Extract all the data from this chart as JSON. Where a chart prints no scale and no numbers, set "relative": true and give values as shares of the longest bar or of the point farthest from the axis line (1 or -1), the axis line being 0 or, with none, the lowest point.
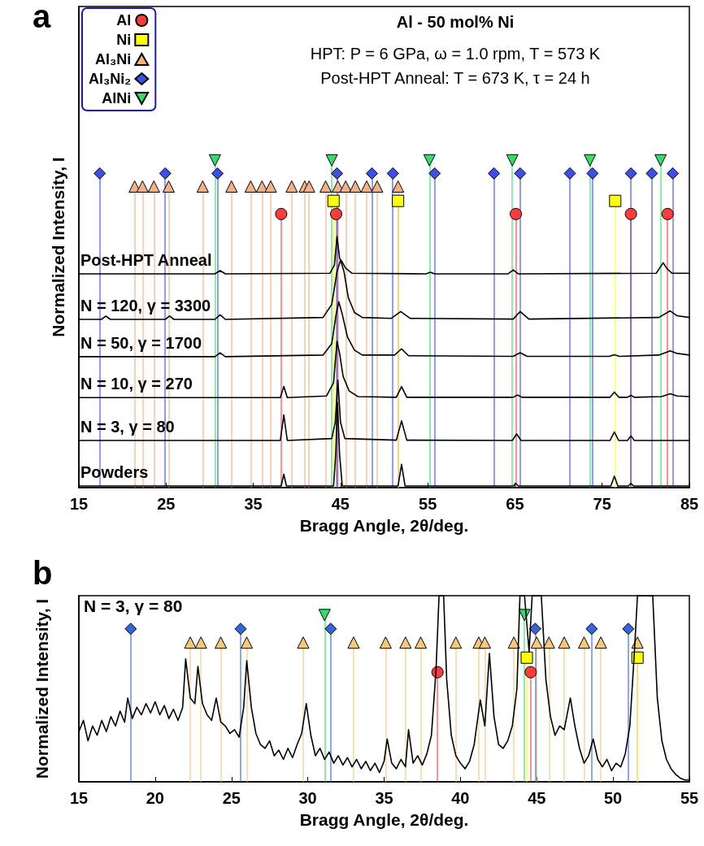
{
  "chart_data": [
    {
      "type": "line",
      "relative": true,
      "title": "Al - 50 mol% Ni",
      "subtitle": "HPT: P = 6 GPa, ω = 1.0 rpm, T = 573 K\nPost-HPT Anneal: T = 673 K, τ = 24 h",
      "xlabel": "Bragg Angle, 2θ/deg.",
      "ylabel": "Normalized Intensity, I",
      "annotations": [
        "a"
      ],
      "xlim": [
        15,
        85
      ],
      "xticks": [
        15,
        25,
        35,
        45,
        55,
        65,
        75,
        85
      ],
      "tick_labels": "x",
      "legend": "top left",
      "series": [
        {
          "name": "Post-HPT Anneal",
          "color": "#000000",
          "x": [
            15,
            30.6,
            31.2,
            31.8,
            43.8,
            44.3,
            44.6,
            44.9,
            45.2,
            45.6,
            46.3,
            54.8,
            55.3,
            55.8,
            64.2,
            64.8,
            65.4,
            81.2,
            81.7,
            82.0,
            82.4,
            83.0,
            85
          ],
          "values": [
            0.653,
            0.653,
            0.663,
            0.653,
            0.655,
            0.68,
            0.767,
            0.7,
            0.689,
            0.67,
            0.655,
            0.653,
            0.658,
            0.653,
            0.653,
            0.665,
            0.653,
            0.655,
            0.675,
            0.687,
            0.67,
            0.655,
            0.655
          ]
        },
        {
          "name": "N = 120, γ = 3300",
          "color": "#000000",
          "x": [
            15,
            17.6,
            18.1,
            18.6,
            24.9,
            25.4,
            25.9,
            30.6,
            31.2,
            31.8,
            43.0,
            44.0,
            44.6,
            45.0,
            45.4,
            45.9,
            46.6,
            47.5,
            50.8,
            51.9,
            53.0,
            64.8,
            65.6,
            66.6,
            81.5,
            82.8,
            83.6,
            85
          ],
          "values": [
            0.514,
            0.514,
            0.524,
            0.514,
            0.514,
            0.524,
            0.514,
            0.514,
            0.528,
            0.514,
            0.52,
            0.56,
            0.66,
            0.695,
            0.66,
            0.58,
            0.535,
            0.52,
            0.517,
            0.538,
            0.517,
            0.515,
            0.538,
            0.515,
            0.52,
            0.54,
            0.525,
            0.52
          ]
        },
        {
          "name": "N = 50, γ = 1700",
          "color": "#000000",
          "x": [
            15,
            30.6,
            31.2,
            31.8,
            43.0,
            44.0,
            44.5,
            44.8,
            45.2,
            45.8,
            46.6,
            47.5,
            51.2,
            52.0,
            52.8,
            64.8,
            65.6,
            66.4,
            75.8,
            76.4,
            77.0,
            81.5,
            82.8,
            83.6,
            85
          ],
          "values": [
            0.4,
            0.4,
            0.412,
            0.4,
            0.405,
            0.44,
            0.53,
            0.568,
            0.53,
            0.46,
            0.42,
            0.405,
            0.405,
            0.424,
            0.403,
            0.401,
            0.412,
            0.401,
            0.401,
            0.406,
            0.401,
            0.405,
            0.418,
            0.41,
            0.405
          ]
        },
        {
          "name": "N = 10, γ = 270",
          "color": "#000000",
          "x": [
            15,
            38.1,
            38.5,
            38.9,
            43.4,
            44.2,
            44.6,
            44.9,
            45.3,
            46.0,
            47.0,
            51.4,
            52.0,
            52.6,
            64.8,
            65.3,
            65.8,
            75.9,
            76.4,
            76.9,
            77.9,
            78.3,
            78.7,
            81.8,
            82.8,
            83.6,
            85
          ],
          "values": [
            0.275,
            0.275,
            0.309,
            0.275,
            0.28,
            0.32,
            0.447,
            0.41,
            0.34,
            0.295,
            0.278,
            0.276,
            0.309,
            0.276,
            0.276,
            0.283,
            0.276,
            0.276,
            0.292,
            0.276,
            0.276,
            0.282,
            0.276,
            0.278,
            0.287,
            0.28,
            0.278
          ]
        },
        {
          "name": "N = 3, γ = 80",
          "color": "#000000",
          "x": [
            15,
            38.1,
            38.5,
            38.9,
            44.0,
            44.4,
            44.7,
            45.0,
            45.5,
            51.4,
            52.0,
            52.6,
            64.7,
            65.2,
            65.7,
            75.9,
            76.4,
            76.9,
            77.9,
            78.3,
            78.7,
            85
          ],
          "values": [
            0.144,
            0.144,
            0.222,
            0.144,
            0.15,
            0.2,
            0.328,
            0.2,
            0.15,
            0.145,
            0.204,
            0.145,
            0.144,
            0.164,
            0.144,
            0.144,
            0.17,
            0.144,
            0.144,
            0.158,
            0.144,
            0.144
          ]
        },
        {
          "name": "Powders",
          "color": "#000000",
          "x": [
            15,
            38.2,
            38.5,
            38.8,
            44.2,
            44.45,
            44.65,
            44.9,
            45.2,
            51.6,
            52.0,
            52.4,
            64.8,
            65.1,
            65.4,
            76.0,
            76.4,
            76.8,
            78.0,
            78.3,
            78.6,
            85
          ],
          "values": [
            0.005,
            0.005,
            0.041,
            0.005,
            0.005,
            0.1,
            0.26,
            0.1,
            0.005,
            0.005,
            0.071,
            0.005,
            0.005,
            0.013,
            0.005,
            0.005,
            0.035,
            0.005,
            0.005,
            0.013,
            0.005,
            0.005
          ]
        },
        {
          "type": "lollipop",
          "name": "Al",
          "color": "#ff3b3b",
          "marker": "circle",
          "x": [
            38.2,
            44.5,
            65.1,
            78.3,
            82.5
          ],
          "values": [
            0.836,
            0.836,
            0.836,
            0.836,
            0.836
          ]
        },
        {
          "type": "lollipop",
          "name": "Ni",
          "color": "#ffff00",
          "marker": "square",
          "x": [
            44.2,
            51.6,
            76.5
          ],
          "values": [
            0.876,
            0.876,
            0.876
          ]
        },
        {
          "type": "lollipop",
          "name": "Al₃Ni",
          "color": "#f4b183",
          "marker": "triangle",
          "x": [
            21.4,
            22.3,
            23.6,
            25.3,
            29.2,
            32.5,
            34.7,
            36.0,
            37.0,
            39.4,
            40.9,
            41.4,
            43.3,
            44.7,
            45.6,
            46.7,
            48.0,
            49.2,
            51.6
          ],
          "values": [
            0.92,
            0.92,
            0.92,
            0.92,
            0.92,
            0.92,
            0.92,
            0.92,
            0.92,
            0.92,
            0.92,
            0.92,
            0.92,
            0.92,
            0.92,
            0.92,
            0.92,
            0.92,
            0.92
          ]
        },
        {
          "type": "lollipop",
          "name": "Al₃Ni₂",
          "color": "#3f4ee8",
          "marker": "diamond",
          "x": [
            17.4,
            24.9,
            30.9,
            44.6,
            48.6,
            51.0,
            55.8,
            62.6,
            65.6,
            71.3,
            73.9,
            78.3,
            80.7,
            83.1
          ],
          "values": [
            0.96,
            0.96,
            0.96,
            0.96,
            0.96,
            0.96,
            0.96,
            0.96,
            0.96,
            0.96,
            0.96,
            0.96,
            0.96,
            0.96
          ]
        },
        {
          "type": "lollipop",
          "name": "AlNi",
          "color": "#2ee06a",
          "marker": "triangle-down",
          "x": [
            30.6,
            44.0,
            55.2,
            64.7,
            73.6,
            81.7
          ],
          "values": [
            1,
            1,
            1,
            1,
            1,
            1
          ]
        }
      ]
    },
    {
      "type": "line",
      "relative": true,
      "xlabel": "Bragg Angle, 2θ/deg.",
      "ylabel": "Normalized Intensity, I",
      "annotations": [
        "b",
        "N = 3, γ = 80"
      ],
      "xlim": [
        15,
        55
      ],
      "xticks": [
        15,
        20,
        25,
        30,
        35,
        40,
        45,
        50,
        55
      ],
      "tick_labels": "x",
      "series": [
        {
          "color": "#000000",
          "x": [
            15,
            15.3,
            15.6,
            15.9,
            16.2,
            16.5,
            16.8,
            17.1,
            17.4,
            17.7,
            18,
            18.2,
            18.5,
            18.8,
            19.1,
            19.4,
            19.7,
            20,
            20.3,
            20.6,
            20.9,
            21.2,
            21.5,
            21.8,
            22,
            22.3,
            22.6,
            22.8,
            23.1,
            23.4,
            23.7,
            24,
            24.3,
            24.6,
            24.9,
            25.2,
            25.5,
            25.8,
            26,
            26.3,
            26.6,
            26.9,
            27.2,
            27.5,
            27.8,
            28.1,
            28.4,
            28.7,
            29,
            29.3,
            29.6,
            29.9,
            30.2,
            30.5,
            30.8,
            31.1,
            31.4,
            31.7,
            32,
            32.3,
            32.6,
            32.9,
            33.2,
            33.5,
            33.8,
            34.1,
            34.4,
            34.7,
            35,
            35.2,
            35.5,
            35.8,
            36.1,
            36.4,
            36.6,
            36.9,
            37.2,
            37.5,
            37.8,
            38.1,
            38.4,
            38.6,
            38.9,
            39.1,
            39.4,
            39.7,
            40,
            40.3,
            40.6,
            40.9,
            41.3,
            41.6,
            41.9,
            42.2,
            42.5,
            42.8,
            43.1,
            43.4,
            43.7,
            43.9,
            44.2,
            44.5,
            44.7,
            45,
            45.3,
            45.6,
            45.9,
            46.2,
            46.5,
            46.8,
            47.2,
            47.5,
            47.8,
            48.1,
            48.4,
            48.7,
            49,
            49.3,
            49.6,
            49.9,
            50.2,
            50.5,
            50.8,
            51.1,
            51.4,
            51.6,
            52.6,
            52.9,
            53.2,
            53.5,
            53.8,
            54.1,
            54.4,
            54.7,
            55
          ],
          "values": [
            0.27,
            0.33,
            0.22,
            0.3,
            0.25,
            0.33,
            0.27,
            0.35,
            0.3,
            0.38,
            0.32,
            0.45,
            0.34,
            0.4,
            0.36,
            0.42,
            0.37,
            0.43,
            0.36,
            0.41,
            0.34,
            0.39,
            0.33,
            0.4,
            0.66,
            0.45,
            0.42,
            0.62,
            0.42,
            0.36,
            0.33,
            0.45,
            0.32,
            0.3,
            0.26,
            0.28,
            0.24,
            0.4,
            0.65,
            0.4,
            0.26,
            0.2,
            0.18,
            0.22,
            0.14,
            0.17,
            0.12,
            0.18,
            0.13,
            0.2,
            0.26,
            0.42,
            0.25,
            0.14,
            0.18,
            0.12,
            0.16,
            0.1,
            0.14,
            0.09,
            0.13,
            0.08,
            0.12,
            0.07,
            0.11,
            0.06,
            0.1,
            0.05,
            0.11,
            0.23,
            0.1,
            0.07,
            0.12,
            0.08,
            0.28,
            0.1,
            0.14,
            0.09,
            0.15,
            0.25,
            0.6,
            1,
            1,
            0.55,
            0.25,
            0.14,
            0.1,
            0.07,
            0.11,
            0.2,
            0.44,
            0.3,
            0.69,
            0.35,
            0.2,
            0.18,
            0.22,
            0.3,
            0.5,
            1,
            1,
            0.7,
            1,
            1,
            1,
            0.55,
            0.35,
            0.25,
            0.3,
            0.28,
            0.45,
            0.3,
            0.18,
            0.1,
            0.14,
            0.23,
            0.12,
            0.08,
            0.12,
            0.06,
            0.1,
            0.08,
            0.15,
            0.3,
            0.7,
            1,
            1,
            0.45,
            0.22,
            0.12,
            0.07,
            0.04,
            0.02,
            0.01,
            0.01
          ]
        },
        {
          "type": "lollipop",
          "color": "#ff3b3b",
          "marker": "circle",
          "x": [
            38.5,
            44.6
          ],
          "values": [
            0.589,
            0.589
          ]
        },
        {
          "type": "lollipop",
          "color": "#ffff00",
          "marker": "square",
          "x": [
            44.35,
            51.6
          ],
          "values": [
            0.667,
            0.667
          ]
        },
        {
          "type": "lollipop",
          "color": "#f6c97a",
          "marker": "triangle",
          "x": [
            22.3,
            23.0,
            24.3,
            26.0,
            29.7,
            33.0,
            35.1,
            36.4,
            37.4,
            39.7,
            41.2,
            41.6,
            43.5,
            45.0,
            45.8,
            46.8,
            48.1,
            49.2,
            51.6
          ],
          "values": [
            0.748,
            0.748,
            0.748,
            0.748,
            0.748,
            0.748,
            0.748,
            0.748,
            0.748,
            0.748,
            0.748,
            0.748,
            0.748,
            0.748,
            0.748,
            0.748,
            0.748,
            0.748,
            0.748
          ]
        },
        {
          "type": "lollipop",
          "color": "#3366dd",
          "marker": "diamond",
          "x": [
            18.4,
            25.6,
            31.5,
            44.9,
            48.6,
            51.0
          ],
          "values": [
            0.822,
            0.822,
            0.822,
            0.822,
            0.822,
            0.822
          ]
        },
        {
          "type": "lollipop",
          "color": "#2ee06a",
          "marker": "triangle-down",
          "x": [
            31.1,
            44.2
          ],
          "values": [
            0.896,
            0.896
          ]
        }
      ]
    }
  ]
}
